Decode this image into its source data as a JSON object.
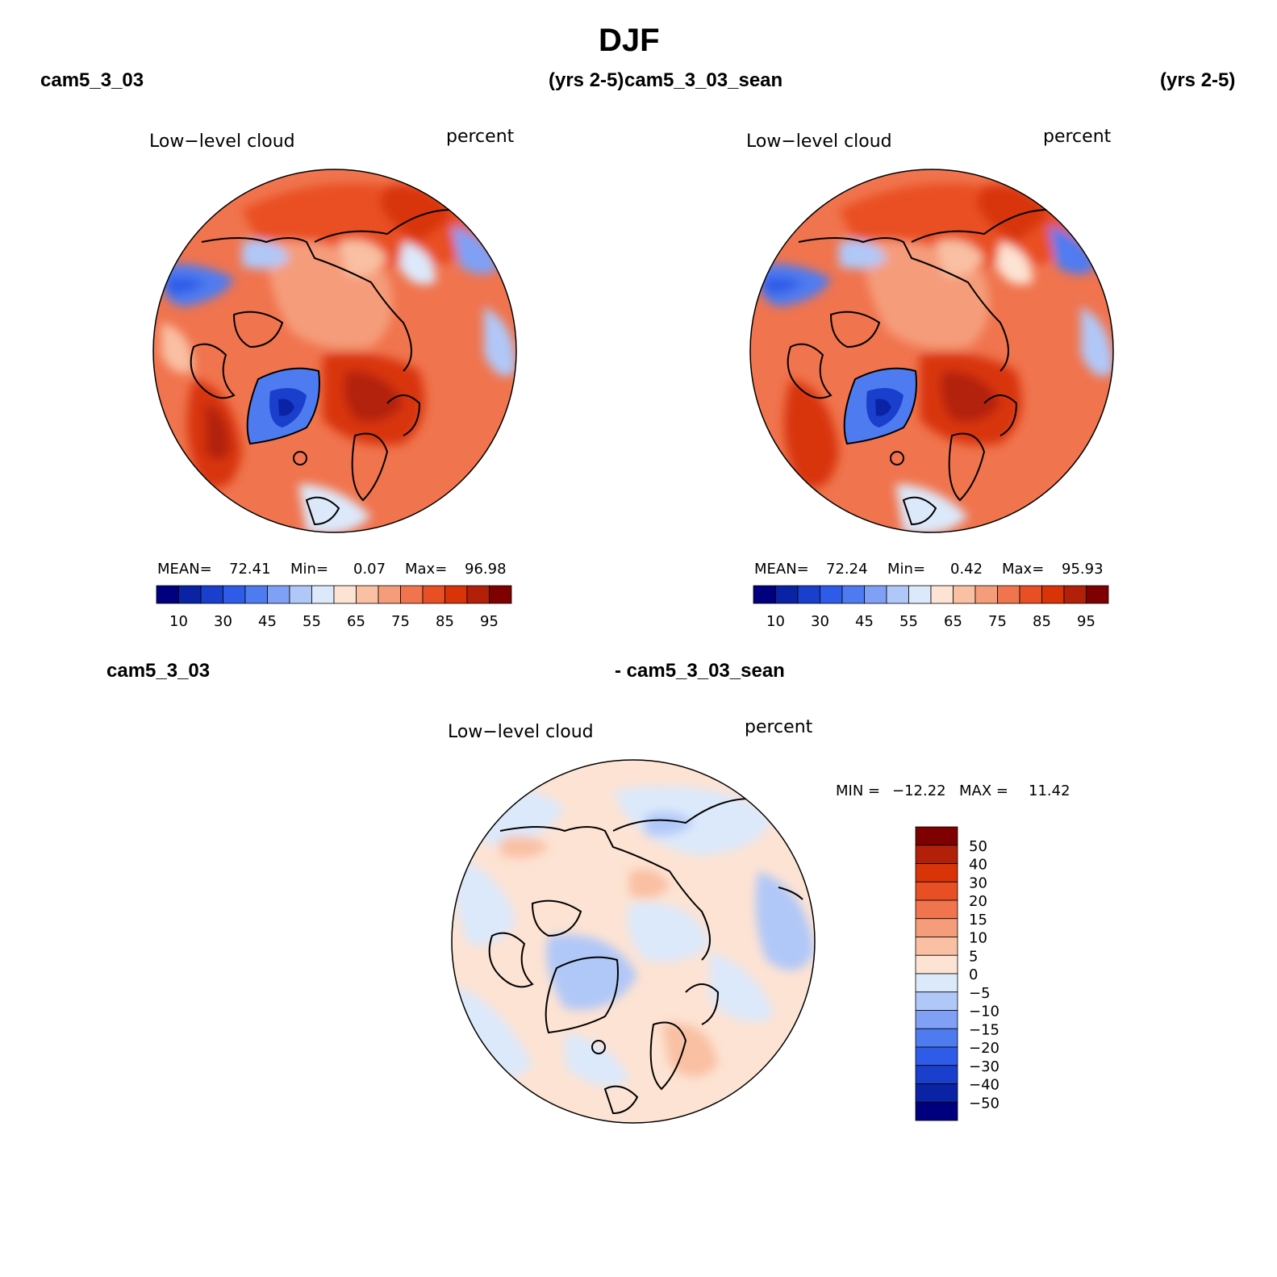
{
  "title": "DJF",
  "panels": [
    {
      "case_label": "cam5_3_03",
      "years": "(yrs 2-5)",
      "variable": "Low−level cloud",
      "units": "percent",
      "stats": {
        "mean_label": "MEAN=",
        "mean": "72.41",
        "min_label": "Min=",
        "min": "0.07",
        "max_label": "Max=",
        "max": "96.98"
      },
      "colorbar_labels": [
        "10",
        "30",
        "45",
        "55",
        "65",
        "75",
        "85",
        "95"
      ]
    },
    {
      "case_label": "cam5_3_03_sean",
      "years": "(yrs 2-5)",
      "variable": "Low−level cloud",
      "units": "percent",
      "stats": {
        "mean_label": "MEAN=",
        "mean": "72.24",
        "min_label": "Min=",
        "min": "0.42",
        "max_label": "Max=",
        "max": "95.93"
      },
      "colorbar_labels": [
        "10",
        "30",
        "45",
        "55",
        "65",
        "75",
        "85",
        "95"
      ]
    }
  ],
  "diff_panel": {
    "case_label_a": "cam5_3_03",
    "case_label_b": "- cam5_3_03_sean",
    "variable": "Low−level cloud",
    "units": "percent",
    "stats": {
      "min_label": "MIN =",
      "min": "−12.22",
      "max_label": "MAX =",
      "max": "11.42"
    },
    "colorbar_labels": [
      "50",
      "40",
      "30",
      "20",
      "15",
      "10",
      "5",
      "0",
      "−5",
      "−10",
      "−15",
      "−20",
      "−30",
      "−40",
      "−50"
    ]
  },
  "colors": {
    "abs_scale": [
      "#00007f",
      "#0a23a5",
      "#1a3fcc",
      "#2e5ce8",
      "#4f7bf0",
      "#7fa0f5",
      "#b0c8f8",
      "#dce9fb",
      "#fde3d3",
      "#f9c0a3",
      "#f59c7a",
      "#f0744e",
      "#e94f24",
      "#d83408",
      "#b2200a",
      "#7f0000"
    ],
    "diff_scale": [
      "#7f0000",
      "#b2200a",
      "#d83408",
      "#e94f24",
      "#f0744e",
      "#f59c7a",
      "#f9c0a3",
      "#fde3d3",
      "#dce9fb",
      "#b0c8f8",
      "#7fa0f5",
      "#4f7bf0",
      "#2e5ce8",
      "#1a3fcc",
      "#0a23a5",
      "#00007f"
    ]
  }
}
